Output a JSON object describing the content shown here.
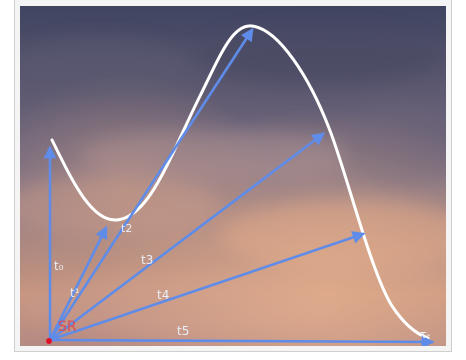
{
  "labels": {
    "origin": "SR",
    "t0": "t₀",
    "t1": "t¹",
    "t2": "t2",
    "t3": "t3",
    "t4": "t4",
    "t5": "t5",
    "end": "τ-"
  },
  "colors": {
    "sky_top": "#3f4460",
    "sky_mid": "#7c6f82",
    "sky_low": "#c8967f",
    "sky_glow": "#e6b08e",
    "arrow": "#5f8ce8",
    "curve": "#ffffff",
    "origin_label": "#d94a54",
    "origin_dot": "#e0102a"
  }
}
